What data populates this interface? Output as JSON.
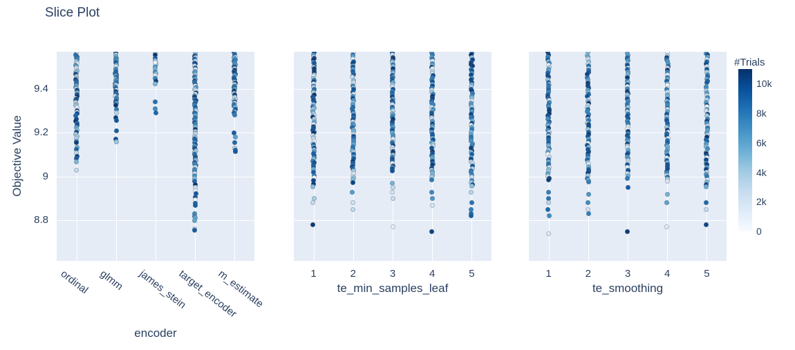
{
  "title": "Slice Plot",
  "chart_data": {
    "type": "scatter",
    "title": "Slice Plot",
    "ylabel": "Objective Value",
    "ylim": [
      8.615,
      9.57
    ],
    "yticks": [
      8.8,
      9.0,
      9.2,
      9.4
    ],
    "ytick_labels": [
      "8.8",
      "9",
      "9.2",
      "9.4"
    ],
    "grid": true,
    "plot_bg": "#e5ecf6",
    "text_color": "#2a3f5f",
    "colorbar": {
      "title": "#Trials",
      "cmin": 0,
      "cmax": 11000,
      "ticks": [
        0,
        2000,
        4000,
        6000,
        8000,
        10000
      ],
      "tick_labels": [
        "0",
        "2k",
        "4k",
        "6k",
        "8k",
        "10k"
      ],
      "colorscale": [
        [
          0,
          "#f7fbff"
        ],
        [
          0.125,
          "#deebf7"
        ],
        [
          0.25,
          "#c6dbef"
        ],
        [
          0.375,
          "#9ecae1"
        ],
        [
          0.5,
          "#6baed6"
        ],
        [
          0.625,
          "#4292c6"
        ],
        [
          0.75,
          "#2171b5"
        ],
        [
          0.875,
          "#08519c"
        ],
        [
          1,
          "#08306b"
        ]
      ]
    },
    "subplots": [
      {
        "xlabel": "encoder",
        "categories": [
          "ordinal",
          "glmm",
          "james_stein",
          "target_encoder",
          "m_estimate"
        ],
        "tick_angle": 38,
        "strips": [
          {
            "x": "ordinal",
            "segments": [
              [
                9.57,
                9.32,
                42
              ],
              [
                9.32,
                9.16,
                16
              ],
              [
                9.16,
                9.06,
                7
              ]
            ],
            "points": [
              [
                9.03,
                2600
              ]
            ]
          },
          {
            "x": "glmm",
            "segments": [
              [
                9.57,
                9.33,
                40
              ],
              [
                9.33,
                9.25,
                5
              ]
            ],
            "points": [
              [
                9.21,
                9000
              ],
              [
                9.17,
                9600
              ],
              [
                9.16,
                4200
              ]
            ]
          },
          {
            "x": "james_stein",
            "segments": [
              [
                9.57,
                9.42,
                14
              ]
            ],
            "points": [
              [
                9.52,
                600
              ],
              [
                9.34,
                8200
              ],
              [
                9.31,
                7200
              ],
              [
                9.29,
                8700
              ]
            ]
          },
          {
            "x": "target_encoder",
            "segments": [
              [
                9.57,
                9.0,
                75
              ],
              [
                9.0,
                8.86,
                10
              ],
              [
                8.84,
                8.79,
                4
              ]
            ],
            "points": [
              [
                8.76,
                2200
              ],
              [
                8.755,
                9200
              ]
            ]
          },
          {
            "x": "m_estimate",
            "segments": [
              [
                9.57,
                9.28,
                46
              ]
            ],
            "points": [
              [
                9.2,
                9100
              ],
              [
                9.18,
                6200
              ],
              [
                9.155,
                8600
              ],
              [
                9.13,
                3200
              ],
              [
                9.12,
                8900
              ],
              [
                9.115,
                9300
              ]
            ]
          }
        ]
      },
      {
        "xlabel": "te_min_samples_leaf",
        "categories": [
          "1",
          "2",
          "3",
          "4",
          "5"
        ],
        "tick_angle": 0,
        "strips": [
          {
            "x": "1",
            "segments": [
              [
                9.57,
                9.05,
                62
              ],
              [
                9.05,
                8.95,
                8
              ]
            ],
            "points": [
              [
                8.9,
                3600
              ],
              [
                8.88,
                2600
              ],
              [
                8.78,
                10600
              ]
            ]
          },
          {
            "x": "2",
            "segments": [
              [
                9.57,
                9.0,
                60
              ],
              [
                9.0,
                8.97,
                3
              ]
            ],
            "points": [
              [
                8.93,
                6200
              ],
              [
                8.88,
                2100
              ],
              [
                8.85,
                2700
              ]
            ]
          },
          {
            "x": "3",
            "segments": [
              [
                9.57,
                9.02,
                60
              ]
            ],
            "points": [
              [
                8.97,
                5200
              ],
              [
                8.95,
                2600
              ],
              [
                8.93,
                1900
              ],
              [
                8.9,
                2300
              ],
              [
                8.77,
                900
              ]
            ]
          },
          {
            "x": "4",
            "segments": [
              [
                9.57,
                8.98,
                62
              ]
            ],
            "points": [
              [
                8.93,
                7200
              ],
              [
                8.9,
                6600
              ],
              [
                8.87,
                1600
              ],
              [
                8.75,
                10200
              ]
            ]
          },
          {
            "x": "5",
            "segments": [
              [
                9.57,
                8.95,
                60
              ]
            ],
            "points": [
              [
                8.93,
                3100
              ],
              [
                8.88,
                8100
              ],
              [
                8.85,
                7600
              ],
              [
                8.83,
                8600
              ],
              [
                8.82,
                9100
              ]
            ]
          }
        ]
      },
      {
        "xlabel": "te_smoothing",
        "categories": [
          "1",
          "2",
          "3",
          "4",
          "5"
        ],
        "tick_angle": 0,
        "strips": [
          {
            "x": "1",
            "segments": [
              [
                9.57,
                8.98,
                62
              ]
            ],
            "points": [
              [
                8.93,
                7600
              ],
              [
                8.9,
                8100
              ],
              [
                8.88,
                3100
              ],
              [
                8.85,
                8600
              ],
              [
                8.82,
                7100
              ],
              [
                8.74,
                1300
              ]
            ]
          },
          {
            "x": "2",
            "segments": [
              [
                9.57,
                8.97,
                60
              ]
            ],
            "points": [
              [
                8.92,
                6600
              ],
              [
                8.88,
                7100
              ],
              [
                8.85,
                2100
              ],
              [
                8.83,
                7600
              ]
            ]
          },
          {
            "x": "3",
            "segments": [
              [
                9.57,
                8.99,
                60
              ]
            ],
            "points": [
              [
                8.95,
                9100
              ],
              [
                8.75,
                10600
              ]
            ]
          },
          {
            "x": "4",
            "segments": [
              [
                9.57,
                8.97,
                60
              ]
            ],
            "points": [
              [
                8.92,
                5200
              ],
              [
                8.88,
                6100
              ],
              [
                8.77,
                1100
              ]
            ]
          },
          {
            "x": "5",
            "segments": [
              [
                9.57,
                8.95,
                58
              ]
            ],
            "points": [
              [
                8.88,
                8600
              ],
              [
                8.85,
                2600
              ],
              [
                8.78,
                10100
              ]
            ]
          }
        ]
      }
    ]
  }
}
